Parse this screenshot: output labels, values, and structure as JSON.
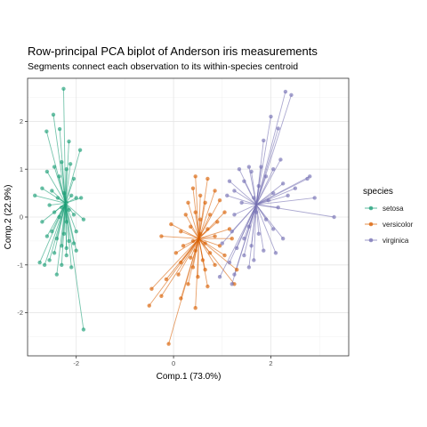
{
  "chart_data": {
    "type": "scatter",
    "title": "Row-principal PCA biplot of Anderson iris measurements",
    "subtitle": "Segments connect each observation to its within-species centroid",
    "xlabel": "Comp.1 (73.0%)",
    "ylabel": "Comp.2 (22.9%)",
    "xlim": [
      -3.0,
      3.6
    ],
    "ylim": [
      -2.9,
      2.9
    ],
    "x_ticks": [
      -2,
      0,
      2
    ],
    "y_ticks": [
      -2,
      -1,
      0,
      1,
      2
    ],
    "grid": true,
    "legend": {
      "title": "species",
      "position": "right"
    },
    "series": [
      {
        "name": "setosa",
        "color": "#1B9E77",
        "centroid": [
          -2.22,
          0.29
        ],
        "points": [
          [
            -2.26,
            2.68
          ],
          [
            -2.47,
            2.14
          ],
          [
            -2.34,
            1.84
          ],
          [
            -2.61,
            1.79
          ],
          [
            -2.15,
            1.58
          ],
          [
            -2.3,
            1.15
          ],
          [
            -2.12,
            1.11
          ],
          [
            -2.45,
            1.05
          ],
          [
            -2.6,
            0.95
          ],
          [
            -1.92,
            1.4
          ],
          [
            -2.2,
            1.0
          ],
          [
            -2.35,
            0.85
          ],
          [
            -2.05,
            0.8
          ],
          [
            -2.7,
            0.6
          ],
          [
            -2.5,
            0.55
          ],
          [
            -2.25,
            0.5
          ],
          [
            -2.1,
            0.45
          ],
          [
            -2.38,
            0.4
          ],
          [
            -2.85,
            0.45
          ],
          [
            -2.0,
            0.4
          ],
          [
            -1.9,
            0.4
          ],
          [
            -2.2,
            0.3
          ],
          [
            -2.3,
            0.2
          ],
          [
            -2.55,
            0.25
          ],
          [
            -2.15,
            0.15
          ],
          [
            -2.45,
            0.1
          ],
          [
            -2.05,
            0.05
          ],
          [
            -2.35,
            0.0
          ],
          [
            -2.7,
            -0.1
          ],
          [
            -2.2,
            -0.1
          ],
          [
            -1.85,
            -0.05
          ],
          [
            -2.5,
            -0.3
          ],
          [
            -2.25,
            -0.35
          ],
          [
            -2.0,
            -0.3
          ],
          [
            -2.4,
            -0.45
          ],
          [
            -2.15,
            -0.5
          ],
          [
            -2.6,
            -0.4
          ],
          [
            -2.3,
            -0.6
          ],
          [
            -2.05,
            -0.55
          ],
          [
            -2.45,
            -0.75
          ],
          [
            -2.2,
            -0.8
          ],
          [
            -2.0,
            -0.7
          ],
          [
            -2.55,
            -0.9
          ],
          [
            -2.3,
            -1.0
          ],
          [
            -2.1,
            -1.05
          ],
          [
            -2.65,
            -1.0
          ],
          [
            -2.4,
            -1.2
          ],
          [
            -2.2,
            -0.65
          ],
          [
            -2.75,
            -0.95
          ],
          [
            -1.85,
            -2.35
          ]
        ]
      },
      {
        "name": "versicolor",
        "color": "#D95F02",
        "centroid": [
          0.52,
          -0.45
        ],
        "points": [
          [
            0.45,
            0.85
          ],
          [
            0.7,
            0.8
          ],
          [
            0.4,
            0.6
          ],
          [
            0.85,
            0.55
          ],
          [
            0.55,
            0.45
          ],
          [
            0.95,
            0.35
          ],
          [
            0.3,
            0.3
          ],
          [
            0.65,
            0.3
          ],
          [
            1.05,
            0.1
          ],
          [
            0.45,
            0.1
          ],
          [
            0.75,
            0.05
          ],
          [
            0.25,
            0.05
          ],
          [
            0.55,
            -0.05
          ],
          [
            0.9,
            -0.1
          ],
          [
            -0.05,
            -0.15
          ],
          [
            0.35,
            -0.2
          ],
          [
            0.7,
            -0.25
          ],
          [
            1.15,
            -0.25
          ],
          [
            0.15,
            -0.3
          ],
          [
            0.55,
            -0.35
          ],
          [
            -0.25,
            -0.4
          ],
          [
            0.85,
            -0.4
          ],
          [
            0.4,
            -0.5
          ],
          [
            1.2,
            -0.45
          ],
          [
            0.65,
            -0.55
          ],
          [
            0.2,
            -0.6
          ],
          [
            0.95,
            -0.6
          ],
          [
            0.45,
            -0.7
          ],
          [
            0.05,
            -0.75
          ],
          [
            0.75,
            -0.75
          ],
          [
            1.05,
            -0.8
          ],
          [
            0.35,
            -0.85
          ],
          [
            0.6,
            -0.9
          ],
          [
            0.15,
            -0.95
          ],
          [
            0.85,
            -1.0
          ],
          [
            0.4,
            -1.05
          ],
          [
            0.65,
            -1.1
          ],
          [
            1.3,
            -1.1
          ],
          [
            0.1,
            -1.2
          ],
          [
            0.5,
            -1.25
          ],
          [
            -0.15,
            -1.3
          ],
          [
            0.3,
            -1.4
          ],
          [
            0.7,
            -1.45
          ],
          [
            1.25,
            -1.4
          ],
          [
            -0.45,
            -1.5
          ],
          [
            -0.25,
            -1.65
          ],
          [
            0.15,
            -1.7
          ],
          [
            -0.5,
            -1.85
          ],
          [
            0.45,
            -1.9
          ],
          [
            -0.1,
            -2.65
          ]
        ]
      },
      {
        "name": "virginica",
        "color": "#7570B3",
        "centroid": [
          1.7,
          0.26
        ],
        "points": [
          [
            2.3,
            2.62
          ],
          [
            2.42,
            2.55
          ],
          [
            2.0,
            2.1
          ],
          [
            2.15,
            1.85
          ],
          [
            1.85,
            1.6
          ],
          [
            2.2,
            1.2
          ],
          [
            1.55,
            1.05
          ],
          [
            1.8,
            1.05
          ],
          [
            2.05,
            1.0
          ],
          [
            1.35,
            1.0
          ],
          [
            1.6,
            0.95
          ],
          [
            1.9,
            0.85
          ],
          [
            2.8,
            0.85
          ],
          [
            2.75,
            0.8
          ],
          [
            1.15,
            0.75
          ],
          [
            1.45,
            0.75
          ],
          [
            2.25,
            0.7
          ],
          [
            1.75,
            0.65
          ],
          [
            2.5,
            0.6
          ],
          [
            1.25,
            0.55
          ],
          [
            2.05,
            0.5
          ],
          [
            2.35,
            0.45
          ],
          [
            1.1,
            0.45
          ],
          [
            1.65,
            0.4
          ],
          [
            2.9,
            0.4
          ],
          [
            1.95,
            0.35
          ],
          [
            1.4,
            0.3
          ],
          [
            2.15,
            0.2
          ],
          [
            3.3,
            0.0
          ],
          [
            1.7,
            0.1
          ],
          [
            1.25,
            0.05
          ],
          [
            1.9,
            -0.05
          ],
          [
            1.55,
            -0.2
          ],
          [
            2.05,
            -0.25
          ],
          [
            1.2,
            -0.3
          ],
          [
            1.75,
            -0.35
          ],
          [
            1.45,
            -0.45
          ],
          [
            2.25,
            -0.45
          ],
          [
            1.0,
            -0.55
          ],
          [
            1.6,
            -0.6
          ],
          [
            1.85,
            -0.7
          ],
          [
            1.3,
            -0.65
          ],
          [
            2.1,
            -0.75
          ],
          [
            1.45,
            -0.8
          ],
          [
            1.65,
            -0.9
          ],
          [
            1.15,
            -0.95
          ],
          [
            1.55,
            -1.05
          ],
          [
            1.25,
            -1.2
          ],
          [
            0.95,
            -1.25
          ],
          [
            1.2,
            -1.4
          ]
        ]
      }
    ]
  }
}
